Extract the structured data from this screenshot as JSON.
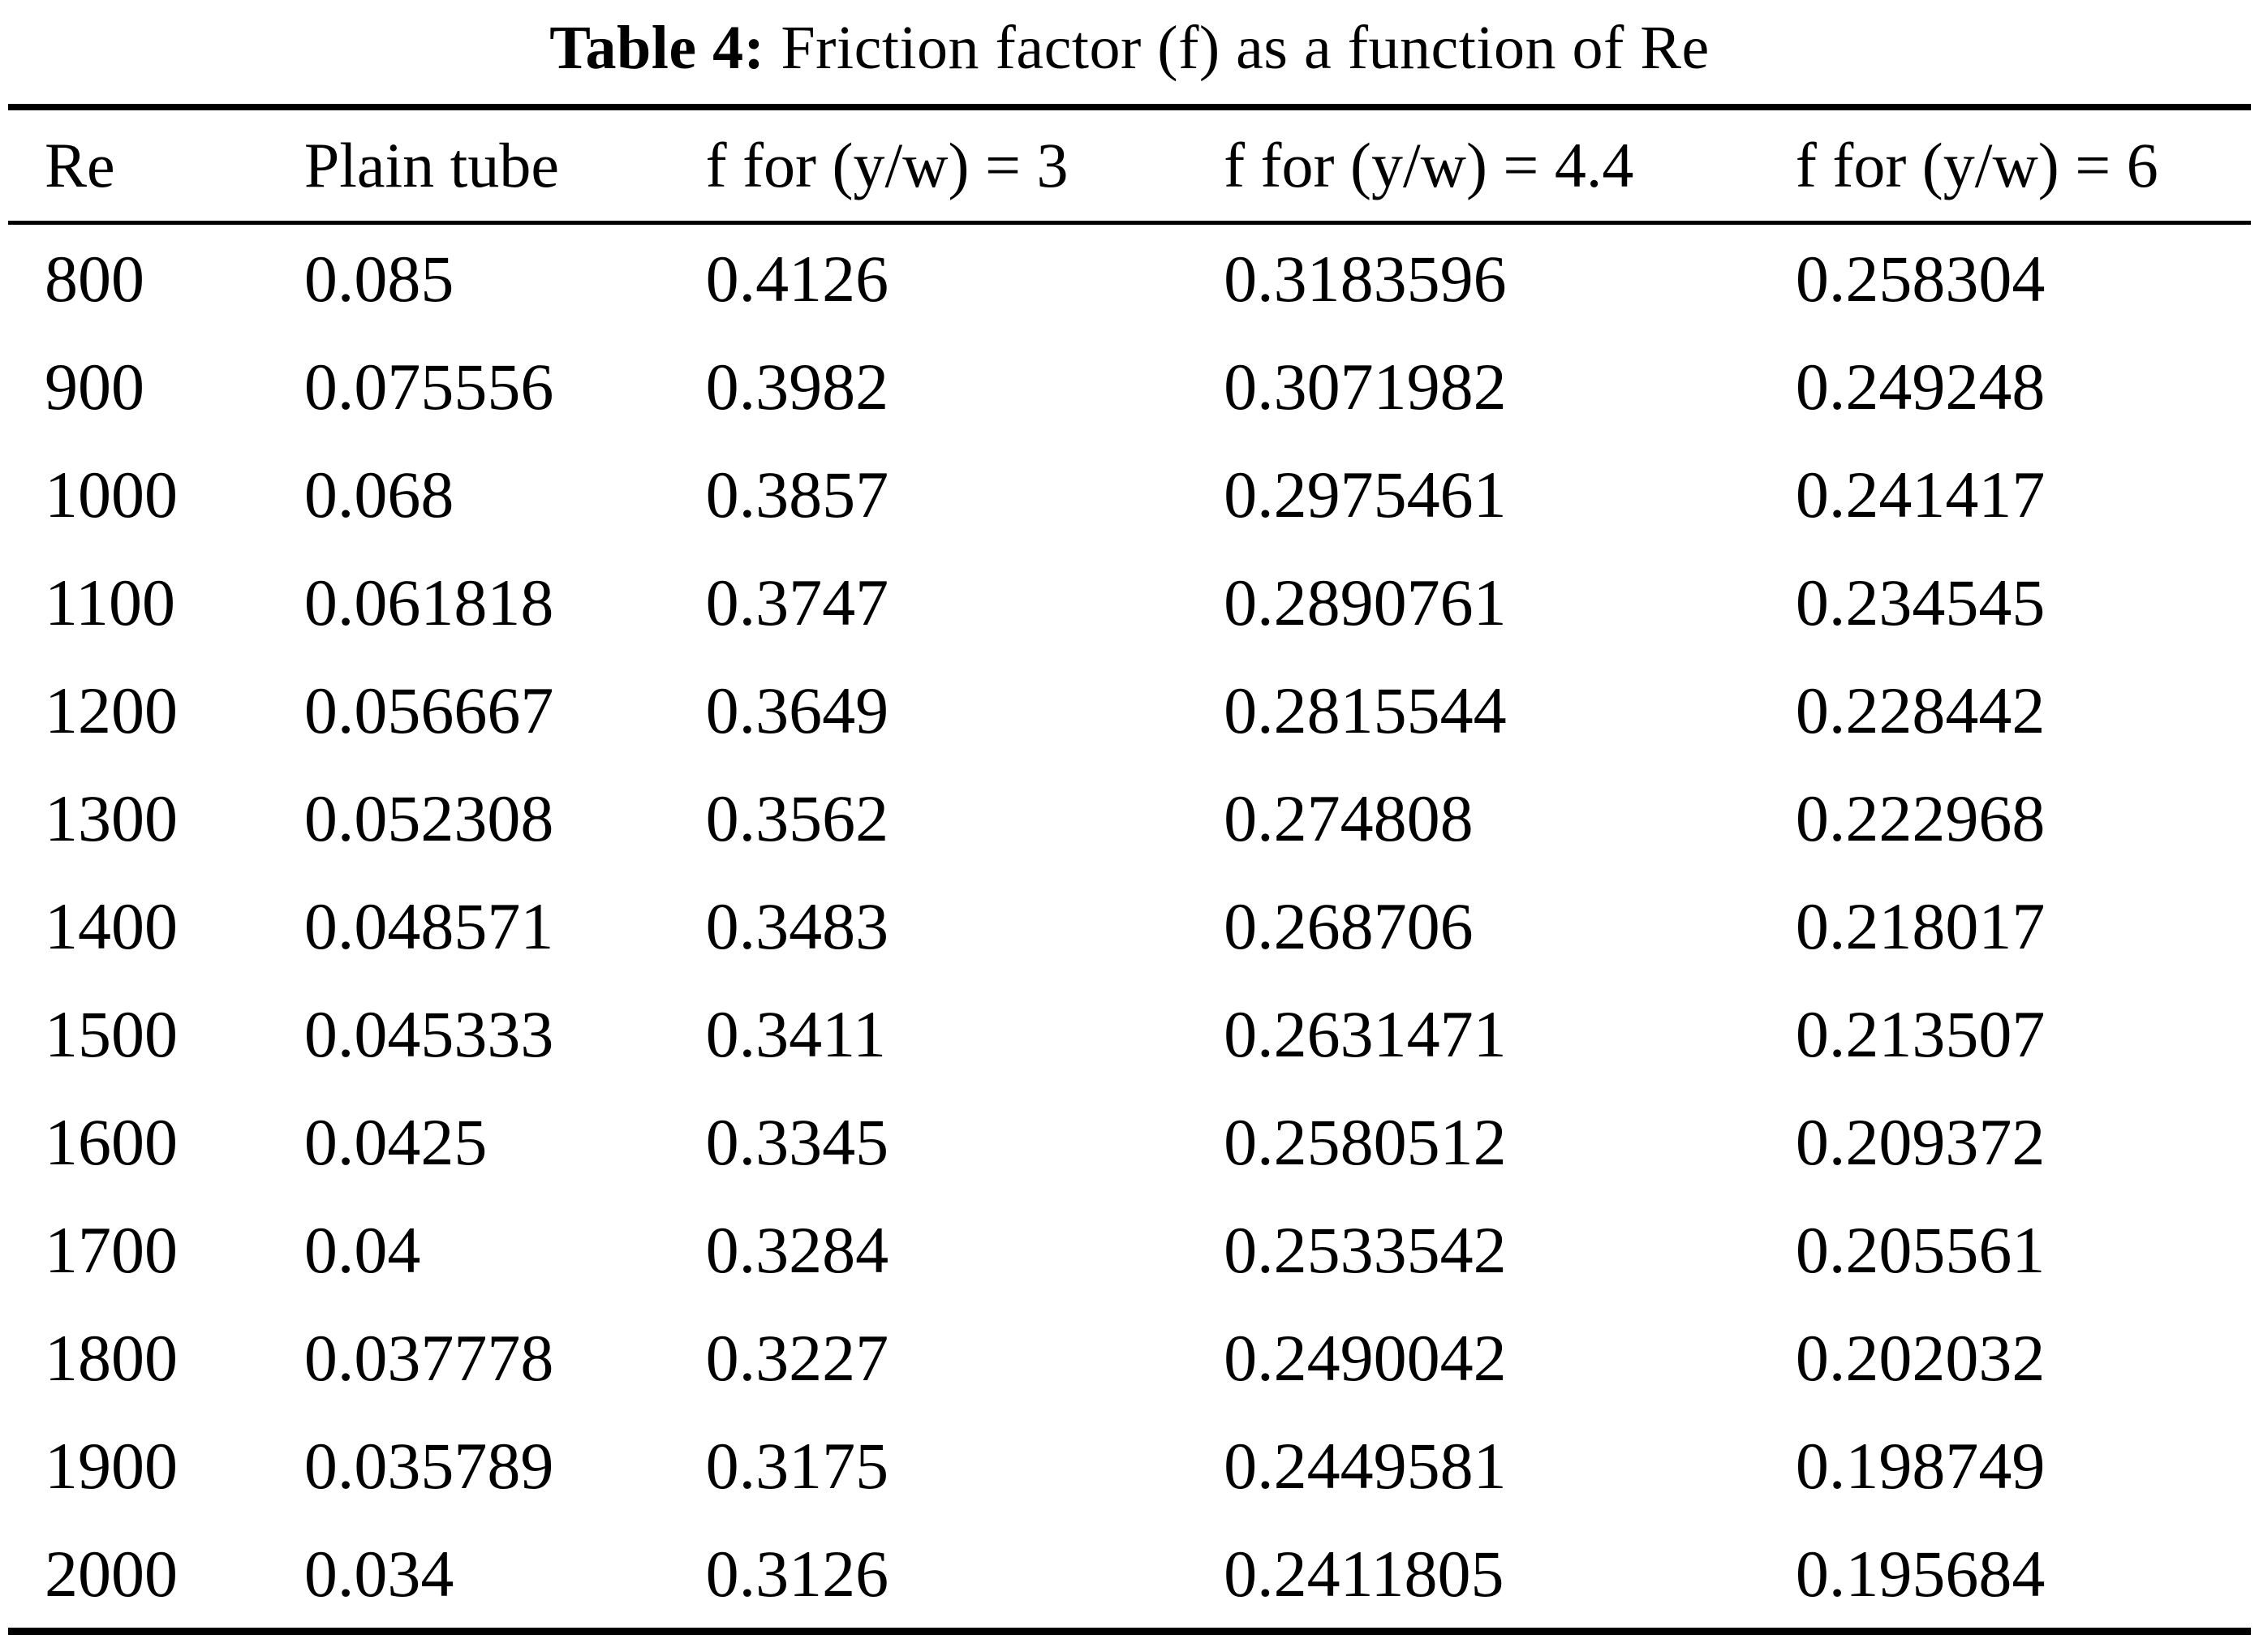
{
  "caption": {
    "label": "Table 4:",
    "text": "Friction factor (f) as a function of Re"
  },
  "table": {
    "columns": [
      "Re",
      "Plain tube",
      "f for (y/w) = 3",
      "f for (y/w) = 4.4",
      "f for (y/w) = 6"
    ],
    "rows": [
      [
        "800",
        "0.085",
        "0.4126",
        "0.3183596",
        "0.258304"
      ],
      [
        "900",
        "0.075556",
        "0.3982",
        "0.3071982",
        "0.249248"
      ],
      [
        "1000",
        "0.068",
        "0.3857",
        "0.2975461",
        "0.241417"
      ],
      [
        "1100",
        "0.061818",
        "0.3747",
        "0.2890761",
        "0.234545"
      ],
      [
        "1200",
        "0.056667",
        "0.3649",
        "0.2815544",
        "0.228442"
      ],
      [
        "1300",
        "0.052308",
        "0.3562",
        "0.274808",
        "0.222968"
      ],
      [
        "1400",
        "0.048571",
        "0.3483",
        "0.268706",
        "0.218017"
      ],
      [
        "1500",
        "0.045333",
        "0.3411",
        "0.2631471",
        "0.213507"
      ],
      [
        "1600",
        "0.0425",
        "0.3345",
        "0.2580512",
        "0.209372"
      ],
      [
        "1700",
        "0.04",
        "0.3284",
        "0.2533542",
        "0.205561"
      ],
      [
        "1800",
        "0.037778",
        "0.3227",
        "0.2490042",
        "0.202032"
      ],
      [
        "1900",
        "0.035789",
        "0.3175",
        "0.2449581",
        "0.198749"
      ],
      [
        "2000",
        "0.034",
        "0.3126",
        "0.2411805",
        "0.195684"
      ]
    ]
  },
  "chart_data": {
    "type": "table",
    "title": "Table 4: Friction factor (f) as a function of Re",
    "columns": [
      "Re",
      "Plain tube",
      "f for (y/w) = 3",
      "f for (y/w) = 4.4",
      "f for (y/w) = 6"
    ],
    "rows": [
      [
        800,
        0.085,
        0.4126,
        0.3183596,
        0.258304
      ],
      [
        900,
        0.075556,
        0.3982,
        0.3071982,
        0.249248
      ],
      [
        1000,
        0.068,
        0.3857,
        0.2975461,
        0.241417
      ],
      [
        1100,
        0.061818,
        0.3747,
        0.2890761,
        0.234545
      ],
      [
        1200,
        0.056667,
        0.3649,
        0.2815544,
        0.228442
      ],
      [
        1300,
        0.052308,
        0.3562,
        0.274808,
        0.222968
      ],
      [
        1400,
        0.048571,
        0.3483,
        0.268706,
        0.218017
      ],
      [
        1500,
        0.045333,
        0.3411,
        0.2631471,
        0.213507
      ],
      [
        1600,
        0.0425,
        0.3345,
        0.2580512,
        0.209372
      ],
      [
        1700,
        0.04,
        0.3284,
        0.2533542,
        0.205561
      ],
      [
        1800,
        0.037778,
        0.3227,
        0.2490042,
        0.202032
      ],
      [
        1900,
        0.035789,
        0.3175,
        0.2449581,
        0.198749
      ],
      [
        2000,
        0.034,
        0.3126,
        0.2411805,
        0.195684
      ]
    ]
  },
  "colors": {
    "text": "#000000",
    "background": "#ffffff",
    "rule": "#000000"
  }
}
